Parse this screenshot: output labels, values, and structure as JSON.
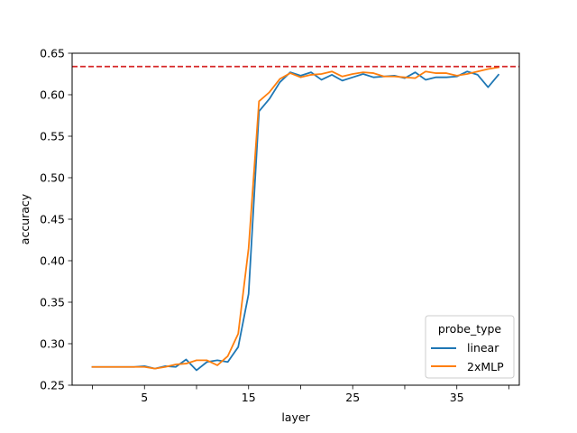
{
  "chart_data": {
    "type": "line",
    "title": "",
    "xlabel": "layer",
    "ylabel": "accuracy",
    "xlim": [
      -1.95,
      41.0
    ],
    "ylim": [
      0.25,
      0.65
    ],
    "x_ticks_labeled": [
      5,
      15,
      25,
      35
    ],
    "x_ticks_minor": [
      0,
      10,
      20,
      30,
      40
    ],
    "x_tick_labels": [
      "5",
      "15",
      "25",
      "35"
    ],
    "y_ticks": [
      0.25,
      0.3,
      0.35,
      0.4,
      0.45,
      0.5,
      0.55,
      0.6,
      0.65
    ],
    "y_tick_labels": [
      "0.25",
      "0.30",
      "0.35",
      "0.40",
      "0.45",
      "0.50",
      "0.55",
      "0.60",
      "0.65"
    ],
    "grid": false,
    "legend": {
      "title": "probe_type",
      "placement": "lower-right"
    },
    "reference_line": {
      "y": 0.634,
      "color": "#d62728",
      "style": "dashed"
    },
    "x": [
      0,
      1,
      2,
      3,
      4,
      5,
      6,
      7,
      8,
      9,
      10,
      11,
      12,
      13,
      14,
      15,
      16,
      17,
      18,
      19,
      20,
      21,
      22,
      23,
      24,
      25,
      26,
      27,
      28,
      29,
      30,
      31,
      32,
      33,
      34,
      35,
      36,
      37,
      38,
      39
    ],
    "series": [
      {
        "name": "linear",
        "color": "#1f77b4",
        "values": [
          0.272,
          0.272,
          0.272,
          0.272,
          0.272,
          0.273,
          0.27,
          0.273,
          0.272,
          0.281,
          0.268,
          0.278,
          0.28,
          0.278,
          0.296,
          0.36,
          0.58,
          0.595,
          0.615,
          0.627,
          0.623,
          0.627,
          0.618,
          0.624,
          0.617,
          0.621,
          0.625,
          0.621,
          0.622,
          0.623,
          0.62,
          0.627,
          0.618,
          0.621,
          0.621,
          0.622,
          0.628,
          0.624,
          0.609,
          0.624
        ]
      },
      {
        "name": "2xMLP",
        "color": "#ff7f0e",
        "values": [
          0.272,
          0.272,
          0.272,
          0.272,
          0.272,
          0.272,
          0.27,
          0.272,
          0.275,
          0.276,
          0.28,
          0.28,
          0.274,
          0.285,
          0.312,
          0.415,
          0.592,
          0.603,
          0.619,
          0.626,
          0.621,
          0.624,
          0.625,
          0.628,
          0.622,
          0.625,
          0.627,
          0.626,
          0.622,
          0.622,
          0.621,
          0.62,
          0.628,
          0.626,
          0.626,
          0.623,
          0.625,
          0.628,
          0.631,
          0.633
        ]
      }
    ]
  }
}
